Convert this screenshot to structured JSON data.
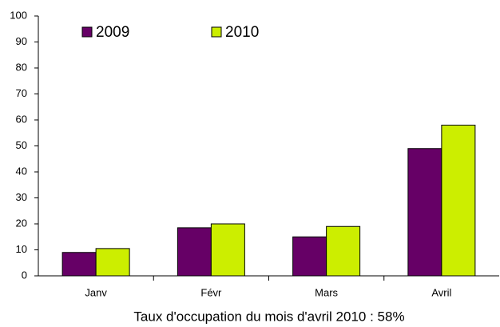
{
  "chart_data": {
    "type": "bar",
    "title": "Taux d'occupation du mois d'avril 2010 : 58%",
    "categories": [
      "Janv",
      "Févr",
      "Mars",
      "Avril"
    ],
    "series": [
      {
        "name": "2009",
        "color": "#660066",
        "values": [
          9,
          18.5,
          15,
          49
        ]
      },
      {
        "name": "2010",
        "color": "#ccee00",
        "values": [
          10.5,
          20,
          19,
          58
        ]
      }
    ],
    "ylim": [
      0,
      100
    ],
    "yticks": [
      0,
      10,
      20,
      30,
      40,
      50,
      60,
      70,
      80,
      90,
      100
    ],
    "grid": false,
    "legend": "top-left"
  }
}
